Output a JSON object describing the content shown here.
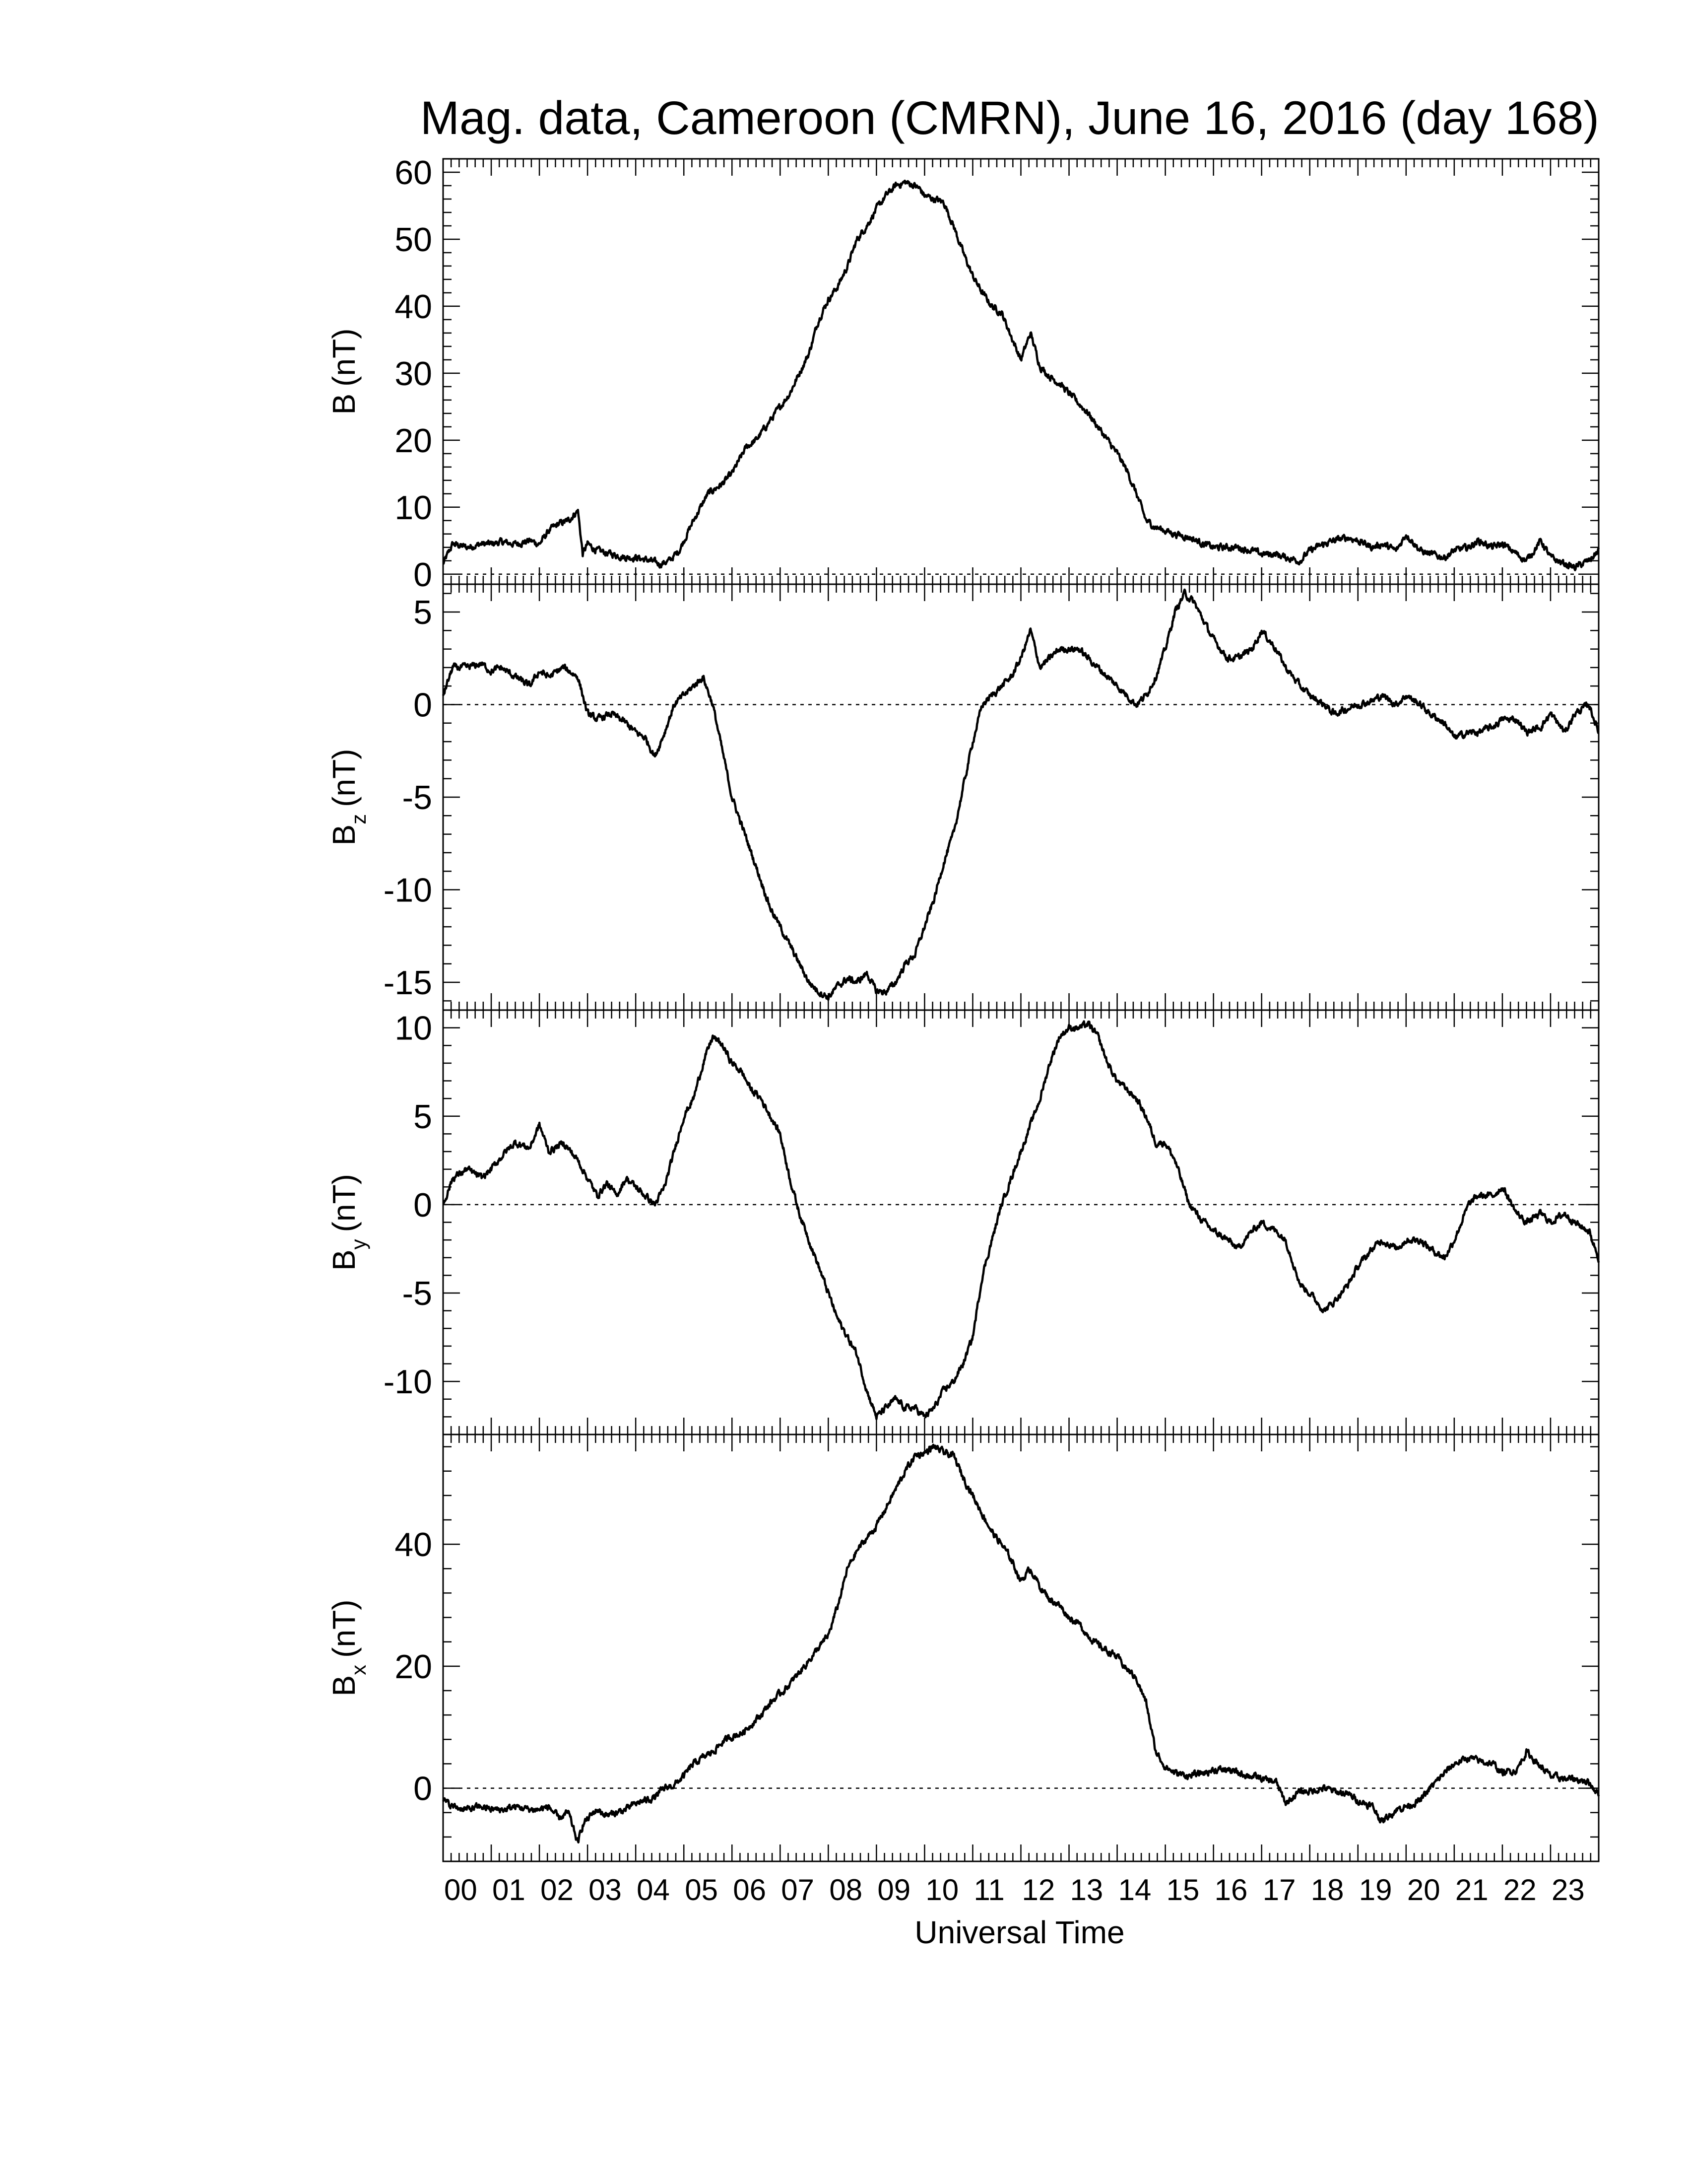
{
  "chart_data": {
    "title": "Mag. data, Cameroon (CMRN), June 16, 2016 (day 168)",
    "xlabel": "Universal Time",
    "x_unit": "hours UT",
    "xlim": [
      0,
      24
    ],
    "x_tick_labels": [
      "00",
      "01",
      "02",
      "03",
      "04",
      "05",
      "06",
      "07",
      "08",
      "09",
      "10",
      "11",
      "12",
      "13",
      "14",
      "15",
      "16",
      "17",
      "18",
      "19",
      "20",
      "21",
      "22",
      "23"
    ],
    "panels": [
      {
        "type": "line",
        "ylabel_main": "B",
        "ylabel_sub": "",
        "ylabel_unit": "(nT)",
        "ylim": [
          -1.5,
          62
        ],
        "yticks": [
          0,
          10,
          20,
          30,
          40,
          50,
          60
        ],
        "ytick_labels": [
          "0",
          "10",
          "20",
          "30",
          "40",
          "50",
          "60"
        ],
        "zero_line": true,
        "series": [
          {
            "x": [
              0.0,
              0.2,
              0.5,
              0.8,
              1.0,
              1.2,
              1.5,
              1.8,
              2.0,
              2.2,
              2.4,
              2.6,
              2.8,
              2.9,
              3.0,
              3.2,
              3.5,
              3.8,
              4.0,
              4.3,
              4.5,
              4.7,
              4.9,
              5.0,
              5.2,
              5.5,
              5.8,
              6.0,
              6.3,
              6.5,
              6.8,
              7.0,
              7.2,
              7.4,
              7.6,
              7.8,
              8.0,
              8.2,
              8.4,
              8.6,
              8.8,
              9.0,
              9.2,
              9.4,
              9.6,
              9.8,
              9.9,
              10.0,
              10.2,
              10.4,
              10.6,
              10.8,
              11.0,
              11.2,
              11.4,
              11.6,
              11.8,
              12.0,
              12.2,
              12.4,
              12.6,
              12.8,
              13.0,
              13.2,
              13.4,
              13.6,
              13.8,
              14.0,
              14.2,
              14.4,
              14.6,
              14.8,
              15.0,
              15.2,
              15.5,
              15.8,
              16.0,
              16.3,
              16.5,
              16.8,
              17.0,
              17.3,
              17.5,
              17.8,
              18.0,
              18.3,
              18.5,
              18.8,
              19.0,
              19.3,
              19.5,
              19.8,
              20.0,
              20.3,
              20.5,
              20.8,
              21.0,
              21.3,
              21.5,
              21.8,
              22.0,
              22.3,
              22.5,
              22.8,
              23.0,
              23.3,
              23.5,
              23.8,
              24.0
            ],
            "y": [
              1.5,
              4.5,
              4.0,
              4.5,
              4.5,
              4.8,
              4.5,
              5.0,
              4.5,
              6.5,
              7.5,
              8.0,
              9.5,
              3.0,
              4.5,
              3.5,
              3.0,
              2.5,
              2.5,
              2.0,
              1.5,
              2.0,
              3.5,
              5.0,
              8.0,
              12.0,
              13.5,
              15.0,
              19.0,
              20.0,
              23.0,
              25.0,
              27.0,
              30.0,
              33.0,
              38.0,
              41.0,
              43.0,
              46.0,
              50.0,
              52.0,
              54.5,
              56.5,
              58.0,
              58.5,
              58.0,
              57.5,
              56.5,
              56.0,
              55.5,
              52.0,
              48.0,
              44.5,
              42.0,
              40.0,
              39.0,
              35.5,
              32.0,
              36.0,
              31.0,
              29.5,
              28.5,
              27.0,
              25.5,
              24.0,
              22.0,
              20.0,
              18.0,
              15.5,
              12.0,
              8.0,
              7.0,
              6.5,
              6.0,
              5.5,
              4.5,
              4.0,
              4.0,
              4.0,
              3.5,
              3.0,
              3.0,
              2.5,
              2.0,
              3.5,
              4.5,
              5.0,
              5.5,
              5.0,
              4.0,
              4.5,
              3.5,
              6.0,
              3.5,
              3.0,
              2.5,
              3.5,
              4.0,
              5.0,
              4.0,
              4.5,
              3.0,
              2.0,
              5.0,
              2.5,
              1.5,
              1.0,
              2.0,
              3.5
            ]
          }
        ]
      },
      {
        "type": "line",
        "ylabel_main": "B",
        "ylabel_sub": "z",
        "ylabel_unit": "(nT)",
        "ylim": [
          -16.5,
          6.5
        ],
        "yticks": [
          5,
          0,
          -5,
          -10,
          -15
        ],
        "ytick_labels": [
          "5",
          "0",
          "-5",
          "-10",
          "-15"
        ],
        "zero_line": true,
        "series": [
          {
            "x": [
              0.0,
              0.2,
              0.5,
              0.8,
              1.0,
              1.2,
              1.5,
              1.8,
              2.0,
              2.2,
              2.5,
              2.8,
              3.0,
              3.2,
              3.5,
              3.8,
              4.0,
              4.2,
              4.4,
              4.6,
              4.8,
              5.0,
              5.2,
              5.4,
              5.6,
              5.8,
              6.0,
              6.2,
              6.4,
              6.6,
              6.8,
              7.0,
              7.2,
              7.4,
              7.6,
              7.8,
              8.0,
              8.2,
              8.4,
              8.6,
              8.8,
              9.0,
              9.2,
              9.4,
              9.6,
              9.8,
              10.0,
              10.2,
              10.4,
              10.6,
              10.8,
              11.0,
              11.2,
              11.4,
              11.6,
              11.8,
              12.0,
              12.2,
              12.4,
              12.6,
              12.8,
              13.0,
              13.2,
              13.4,
              13.6,
              13.8,
              14.0,
              14.2,
              14.4,
              14.6,
              14.8,
              15.0,
              15.2,
              15.4,
              15.6,
              15.8,
              16.0,
              16.3,
              16.5,
              16.8,
              17.0,
              17.3,
              17.5,
              17.8,
              18.0,
              18.3,
              18.5,
              18.8,
              19.0,
              19.3,
              19.5,
              19.8,
              20.0,
              20.3,
              20.5,
              20.8,
              21.0,
              21.3,
              21.5,
              21.8,
              22.0,
              22.3,
              22.5,
              22.8,
              23.0,
              23.3,
              23.5,
              23.8,
              24.0
            ],
            "y": [
              0.5,
              2.0,
              2.0,
              2.2,
              1.8,
              2.0,
              1.5,
              1.0,
              1.8,
              1.5,
              2.0,
              1.5,
              -0.5,
              -0.8,
              -0.5,
              -1.0,
              -1.5,
              -1.8,
              -2.8,
              -1.5,
              0.0,
              0.5,
              1.0,
              1.5,
              0.0,
              -2.5,
              -5.0,
              -6.5,
              -8.0,
              -9.5,
              -11.0,
              -12.0,
              -13.0,
              -14.0,
              -15.0,
              -15.5,
              -15.8,
              -15.2,
              -14.8,
              -15.0,
              -14.5,
              -15.5,
              -15.5,
              -15.0,
              -14.0,
              -13.5,
              -12.0,
              -10.5,
              -8.5,
              -7.0,
              -4.5,
              -2.0,
              0.0,
              0.5,
              1.0,
              1.5,
              2.5,
              4.0,
              2.0,
              2.5,
              3.0,
              3.0,
              3.0,
              2.5,
              2.0,
              1.5,
              1.0,
              0.5,
              0.0,
              0.5,
              1.5,
              3.0,
              5.0,
              6.0,
              5.5,
              4.5,
              3.5,
              2.5,
              2.5,
              3.0,
              4.0,
              3.0,
              2.0,
              1.0,
              0.5,
              0.0,
              -0.5,
              -0.2,
              0.0,
              0.2,
              0.5,
              0.0,
              0.5,
              0.0,
              -0.5,
              -1.0,
              -1.8,
              -1.5,
              -1.5,
              -1.2,
              -0.8,
              -0.8,
              -1.5,
              -1.2,
              -0.5,
              -1.5,
              -0.5,
              0.0,
              -1.5
            ]
          }
        ]
      },
      {
        "type": "line",
        "ylabel_main": "B",
        "ylabel_sub": "y",
        "ylabel_unit": "(nT)",
        "ylim": [
          -13,
          11
        ],
        "yticks": [
          10,
          5,
          0,
          -5,
          -10
        ],
        "ytick_labels": [
          "10",
          "5",
          "0",
          "-5",
          "-10"
        ],
        "zero_line": true,
        "series": [
          {
            "x": [
              0.0,
              0.2,
              0.5,
              0.8,
              1.0,
              1.3,
              1.5,
              1.8,
              2.0,
              2.2,
              2.5,
              2.8,
              3.0,
              3.2,
              3.4,
              3.6,
              3.8,
              4.0,
              4.2,
              4.4,
              4.6,
              4.8,
              5.0,
              5.2,
              5.4,
              5.6,
              5.8,
              6.0,
              6.2,
              6.4,
              6.6,
              6.8,
              7.0,
              7.2,
              7.4,
              7.6,
              7.8,
              8.0,
              8.2,
              8.4,
              8.6,
              8.8,
              9.0,
              9.2,
              9.4,
              9.6,
              9.8,
              10.0,
              10.2,
              10.4,
              10.6,
              10.8,
              11.0,
              11.2,
              11.4,
              11.6,
              11.8,
              12.0,
              12.2,
              12.4,
              12.6,
              12.8,
              13.0,
              13.2,
              13.4,
              13.6,
              13.8,
              14.0,
              14.2,
              14.4,
              14.6,
              14.8,
              15.0,
              15.2,
              15.5,
              15.8,
              16.0,
              16.3,
              16.5,
              16.8,
              17.0,
              17.3,
              17.5,
              17.8,
              18.0,
              18.3,
              18.5,
              18.8,
              19.0,
              19.3,
              19.5,
              19.8,
              20.0,
              20.3,
              20.5,
              20.8,
              21.0,
              21.3,
              21.5,
              21.8,
              22.0,
              22.3,
              22.5,
              22.8,
              23.0,
              23.3,
              23.5,
              23.8,
              24.0
            ],
            "y": [
              0.0,
              1.5,
              2.0,
              1.5,
              2.0,
              3.0,
              3.5,
              3.2,
              4.5,
              3.0,
              3.5,
              2.5,
              1.5,
              0.5,
              1.2,
              0.5,
              1.5,
              1.0,
              0.5,
              0.0,
              1.0,
              3.0,
              5.0,
              6.0,
              8.0,
              9.5,
              9.0,
              8.0,
              7.5,
              6.5,
              6.0,
              5.0,
              4.0,
              1.5,
              -0.5,
              -2.0,
              -3.5,
              -5.0,
              -6.5,
              -7.5,
              -8.5,
              -10.5,
              -12.0,
              -11.5,
              -11.0,
              -11.5,
              -11.5,
              -12.0,
              -11.5,
              -10.5,
              -10.0,
              -9.0,
              -7.5,
              -4.0,
              -2.0,
              0.0,
              1.5,
              3.0,
              4.5,
              6.0,
              8.0,
              9.5,
              10.0,
              10.0,
              10.2,
              9.5,
              8.0,
              7.0,
              6.5,
              6.0,
              5.0,
              3.5,
              3.5,
              2.5,
              0.0,
              -1.0,
              -1.5,
              -2.0,
              -2.5,
              -1.5,
              -1.0,
              -1.5,
              -2.0,
              -4.5,
              -5.0,
              -6.0,
              -5.5,
              -4.5,
              -3.5,
              -2.5,
              -2.0,
              -2.5,
              -2.0,
              -2.0,
              -2.5,
              -3.0,
              -2.0,
              0.0,
              0.5,
              0.5,
              1.0,
              -0.5,
              -1.0,
              -0.5,
              -1.0,
              -0.5,
              -1.0,
              -1.5,
              -3.0
            ]
          }
        ]
      },
      {
        "type": "line",
        "ylabel_main": "B",
        "ylabel_sub": "x",
        "ylabel_unit": "(nT)",
        "ylim": [
          -12,
          58
        ],
        "yticks": [
          40,
          20,
          0
        ],
        "ytick_labels": [
          "40",
          "20",
          "0"
        ],
        "zero_line": true,
        "series": [
          {
            "x": [
              0.0,
              0.2,
              0.5,
              0.8,
              1.0,
              1.3,
              1.5,
              1.8,
              2.0,
              2.2,
              2.4,
              2.6,
              2.8,
              2.9,
              3.0,
              3.2,
              3.4,
              3.6,
              3.8,
              4.0,
              4.2,
              4.4,
              4.6,
              4.8,
              5.0,
              5.2,
              5.4,
              5.6,
              5.8,
              6.0,
              6.2,
              6.4,
              6.6,
              6.8,
              7.0,
              7.2,
              7.4,
              7.6,
              7.8,
              8.0,
              8.2,
              8.4,
              8.6,
              8.8,
              9.0,
              9.2,
              9.4,
              9.6,
              9.8,
              10.0,
              10.2,
              10.4,
              10.6,
              10.8,
              11.0,
              11.2,
              11.4,
              11.6,
              11.8,
              12.0,
              12.2,
              12.4,
              12.6,
              12.8,
              13.0,
              13.2,
              13.4,
              13.6,
              13.8,
              14.0,
              14.2,
              14.4,
              14.6,
              14.8,
              15.0,
              15.2,
              15.5,
              15.8,
              16.0,
              16.3,
              16.5,
              16.8,
              17.0,
              17.3,
              17.5,
              17.8,
              18.0,
              18.3,
              18.5,
              18.8,
              19.0,
              19.3,
              19.5,
              19.8,
              20.0,
              20.3,
              20.5,
              20.8,
              21.0,
              21.3,
              21.5,
              21.8,
              22.0,
              22.3,
              22.5,
              22.8,
              23.0,
              23.3,
              23.5,
              23.8,
              24.0
            ],
            "y": [
              -2.0,
              -3.0,
              -3.5,
              -3.0,
              -3.5,
              -3.5,
              -3.0,
              -3.5,
              -3.5,
              -3.0,
              -5.0,
              -4.0,
              -9.0,
              -6.0,
              -5.0,
              -3.5,
              -4.5,
              -4.0,
              -3.5,
              -2.5,
              -2.0,
              -1.5,
              0.0,
              0.5,
              2.0,
              4.0,
              5.0,
              6.0,
              7.5,
              8.5,
              9.0,
              10.5,
              12.0,
              14.0,
              15.5,
              17.0,
              19.0,
              21.0,
              23.0,
              25.0,
              30.0,
              36.0,
              39.0,
              41.0,
              43.0,
              46.0,
              49.0,
              52.0,
              54.5,
              55.0,
              56.0,
              55.0,
              54.5,
              51.0,
              48.0,
              45.0,
              42.0,
              40.0,
              37.5,
              34.0,
              36.0,
              33.0,
              31.0,
              30.0,
              28.0,
              27.0,
              25.0,
              23.5,
              22.5,
              21.5,
              19.5,
              18.0,
              14.0,
              6.0,
              3.5,
              2.5,
              2.0,
              2.5,
              3.0,
              3.0,
              2.5,
              2.0,
              1.5,
              1.0,
              -2.5,
              -0.5,
              -0.5,
              0.0,
              -0.5,
              -1.0,
              -2.0,
              -3.0,
              -5.5,
              -3.5,
              -3.0,
              -2.0,
              0.0,
              2.5,
              4.0,
              5.0,
              4.5,
              4.0,
              2.5,
              3.0,
              6.0,
              3.5,
              2.0,
              1.5,
              1.5,
              1.0,
              -1.0
            ]
          }
        ]
      }
    ]
  }
}
